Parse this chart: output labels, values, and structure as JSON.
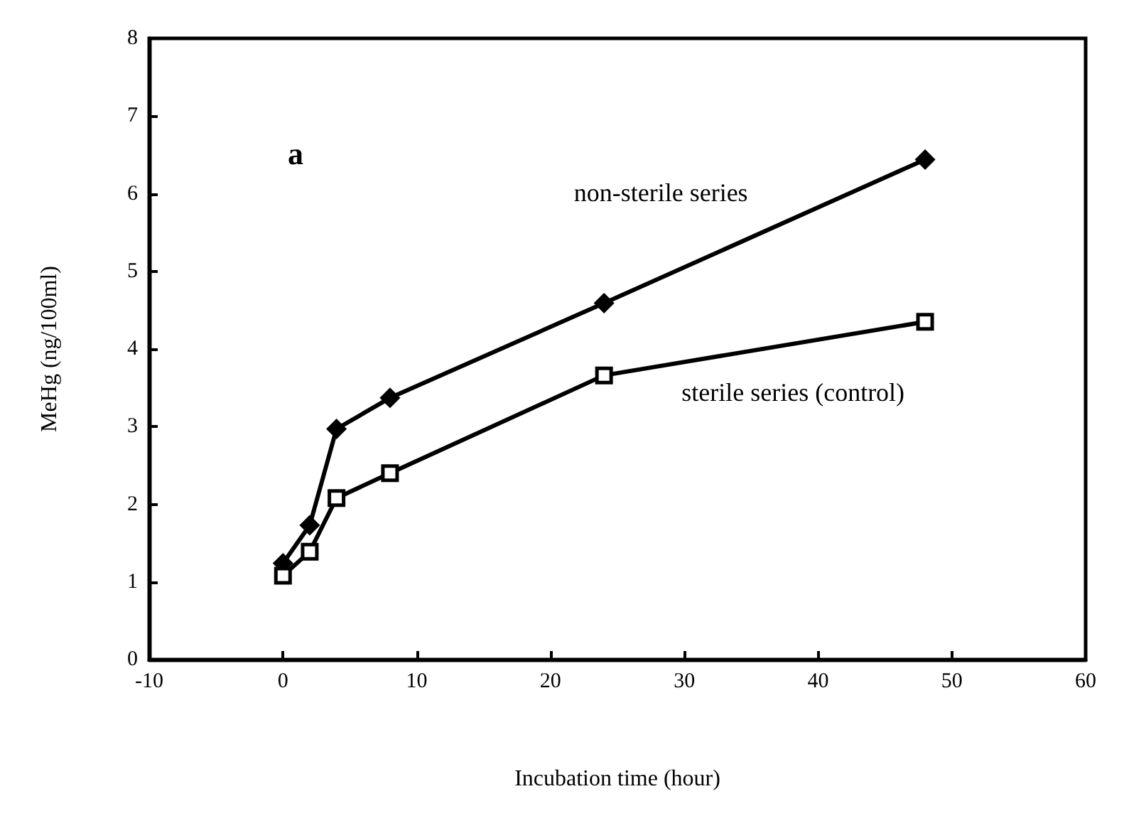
{
  "chart_data": {
    "type": "line",
    "xlabel": "Incubation time (hour)",
    "ylabel": "MeHg (ng/100ml)",
    "xlim": [
      -10,
      60
    ],
    "xticks": [
      -10,
      0,
      10,
      20,
      30,
      40,
      50,
      60
    ],
    "ylim": [
      0,
      8
    ],
    "yticks": [
      0,
      1,
      2,
      3,
      4,
      5,
      6,
      7,
      8
    ],
    "grid": false,
    "legend": false,
    "line_style": "solid",
    "series": [
      {
        "name": "non-sterile series",
        "x": [
          0,
          2,
          4,
          8,
          24,
          48
        ],
        "values": [
          1.24,
          1.73,
          2.97,
          3.37,
          4.59,
          6.44
        ],
        "color": "#000000",
        "marker": "diamond"
      },
      {
        "name": "sterile series (control)",
        "x": [
          0,
          2,
          4,
          8,
          24,
          48
        ],
        "values": [
          1.08,
          1.39,
          2.08,
          2.4,
          3.66,
          4.35
        ],
        "color": "#000000",
        "marker": "square"
      }
    ],
    "annotations": [
      "a"
    ]
  }
}
